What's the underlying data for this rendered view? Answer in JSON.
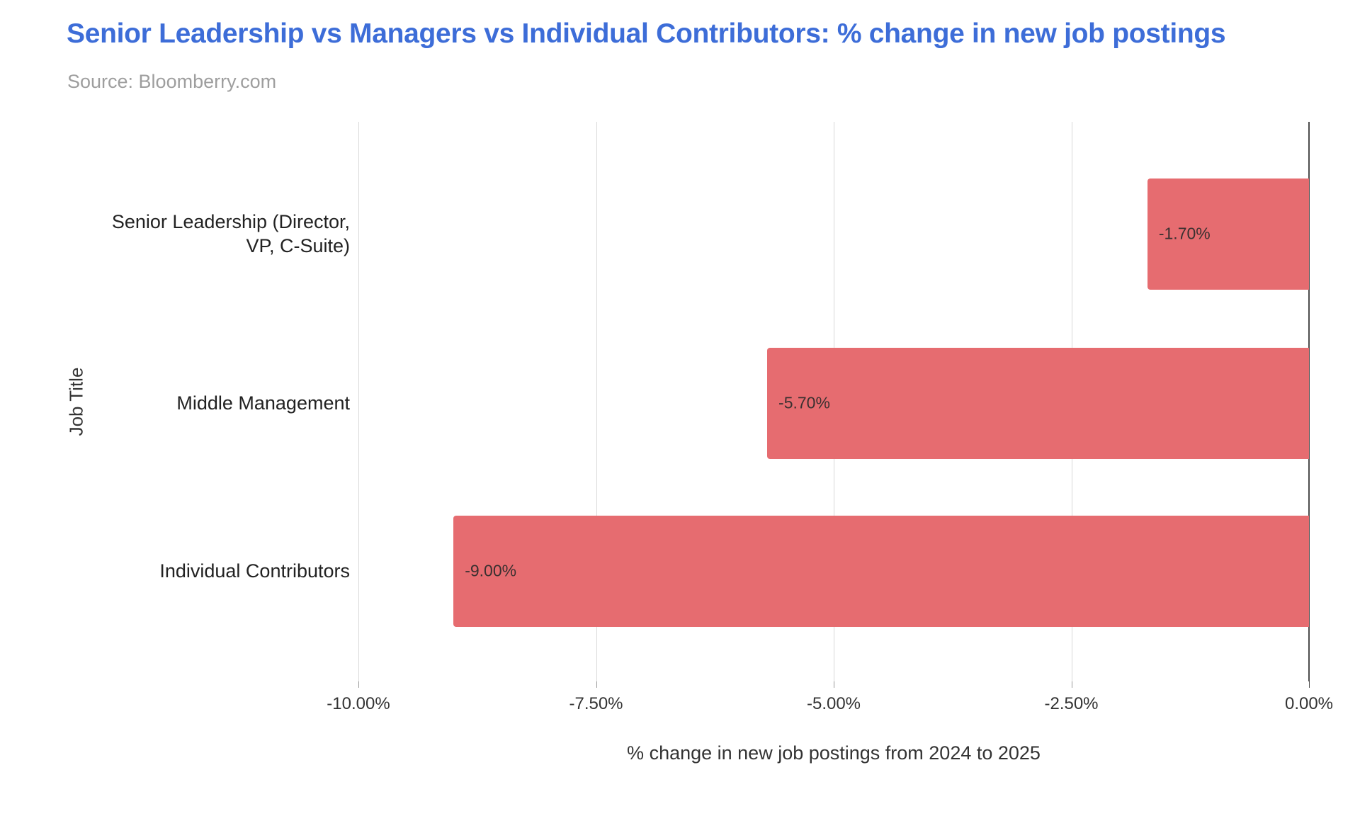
{
  "header": {
    "title": "Senior Leadership vs Managers vs Individual Contributors: % change in new job postings",
    "source": "Source: Bloomberry.com"
  },
  "chart_data": {
    "type": "bar",
    "orientation": "horizontal",
    "title": "Senior Leadership vs Managers vs Individual Contributors: % change in new job postings",
    "source": "Source: Bloomberry.com",
    "categories": [
      "Senior Leadership (Director, VP, C-Suite)",
      "Middle Management",
      "Individual Contributors"
    ],
    "categories_display": [
      [
        "Senior Leadership (Director,",
        "VP, C-Suite)"
      ],
      [
        "Middle Management"
      ],
      [
        "Individual Contributors"
      ]
    ],
    "values": [
      -1.7,
      -5.7,
      -9.0
    ],
    "bar_labels": [
      "-1.70%",
      "-5.70%",
      "-9.00%"
    ],
    "xlabel": "% change in new job postings from 2024 to 2025",
    "ylabel": "Job Title",
    "xlim": [
      -10,
      0
    ],
    "xticks": [
      -10,
      -7.5,
      -5,
      -2.5,
      0
    ],
    "xtick_labels": [
      "-10.00%",
      "-7.50%",
      "-5.00%",
      "-2.50%",
      "0.00%"
    ],
    "grid": true,
    "legend": false,
    "colors": {
      "bar": "#E66C70",
      "title": "#3D6DD8",
      "source": "#9E9E9E",
      "gridline": "#D9D9D9",
      "axis_line": "#4D4D4D",
      "tick": "#999999",
      "text": "#333333",
      "bar_label": "#3A3030",
      "category": "#222222"
    }
  }
}
